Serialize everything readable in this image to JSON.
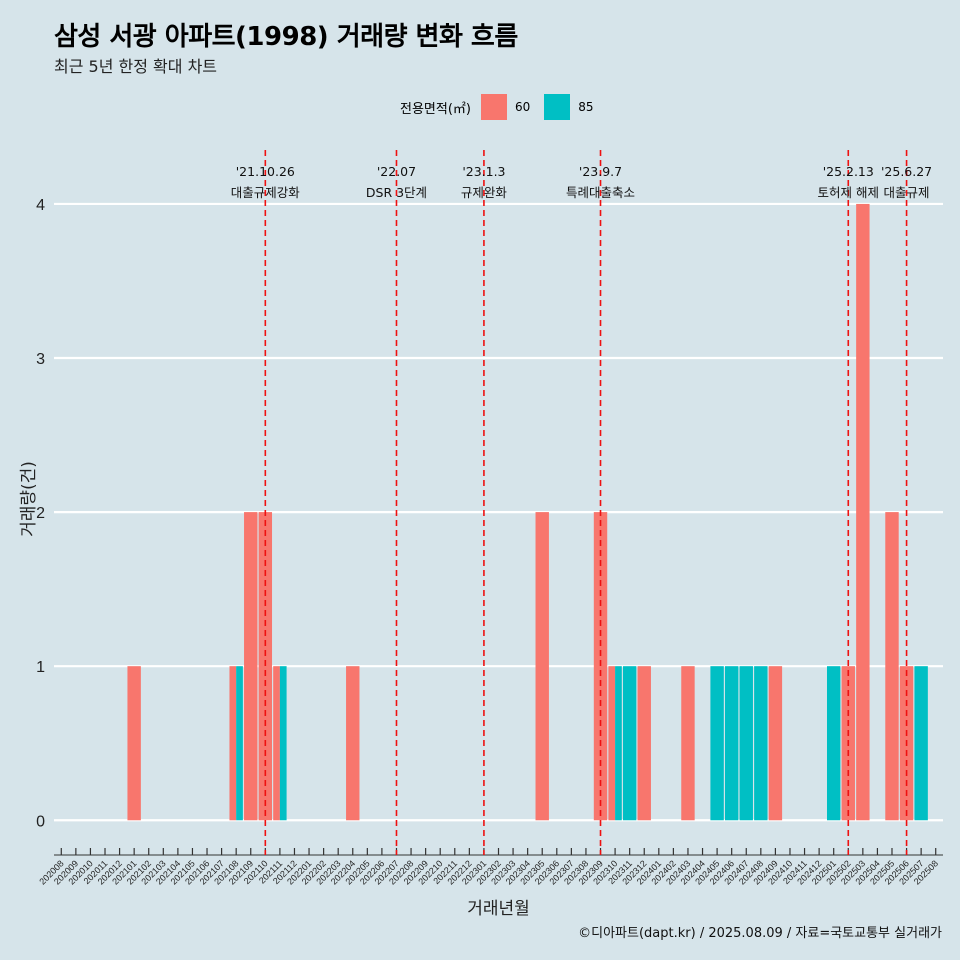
{
  "title": "삼성 서광 아파트(1998) 거래량 변화 흐름",
  "subtitle": "최근 5년 한정 확대 차트",
  "caption": "©디아파트(dapt.kr) / 2025.08.09 / 자료=국토교통부 실거래가",
  "legend": {
    "title": "전용면적(㎡)",
    "items": [
      {
        "label": "60",
        "color": "#f8766d"
      },
      {
        "label": "85",
        "color": "#00bfc4"
      }
    ]
  },
  "chart_data": {
    "type": "bar",
    "xlabel": "거래년월",
    "ylabel": "거래량(건)",
    "ylim": [
      -0.18,
      4.35
    ],
    "yticks": [
      0,
      1,
      2,
      3,
      4
    ],
    "grid": true,
    "legend_position": "top",
    "categories": [
      "202008",
      "202009",
      "202010",
      "202011",
      "202012",
      "202101",
      "202102",
      "202103",
      "202104",
      "202105",
      "202106",
      "202107",
      "202108",
      "202109",
      "202110",
      "202111",
      "202112",
      "202201",
      "202202",
      "202203",
      "202204",
      "202205",
      "202206",
      "202207",
      "202208",
      "202209",
      "202210",
      "202211",
      "202212",
      "202301",
      "202302",
      "202303",
      "202304",
      "202305",
      "202306",
      "202307",
      "202308",
      "202309",
      "202310",
      "202311",
      "202312",
      "202401",
      "202402",
      "202403",
      "202404",
      "202405",
      "202406",
      "202407",
      "202408",
      "202409",
      "202410",
      "202411",
      "202412",
      "202501",
      "202502",
      "202503",
      "202504",
      "202505",
      "202506",
      "202507",
      "202508"
    ],
    "series": [
      {
        "name": "60",
        "color": "#f8766d",
        "values": [
          0,
          0,
          0,
          0,
          0,
          1,
          0,
          0,
          0,
          0,
          0,
          0,
          1,
          2,
          2,
          1,
          0,
          0,
          0,
          0,
          1,
          0,
          0,
          0,
          0,
          0,
          0,
          0,
          0,
          0,
          0,
          0,
          0,
          2,
          0,
          0,
          0,
          2,
          1,
          0,
          1,
          0,
          0,
          1,
          0,
          0,
          0,
          0,
          0,
          1,
          0,
          0,
          0,
          0,
          1,
          4,
          0,
          2,
          1,
          0,
          0
        ]
      },
      {
        "name": "85",
        "color": "#00bfc4",
        "values": [
          0,
          0,
          0,
          0,
          0,
          0,
          0,
          0,
          0,
          0,
          0,
          0,
          1,
          0,
          0,
          1,
          0,
          0,
          0,
          0,
          0,
          0,
          0,
          0,
          0,
          0,
          0,
          0,
          0,
          0,
          0,
          0,
          0,
          0,
          0,
          0,
          0,
          0,
          1,
          1,
          0,
          0,
          0,
          0,
          0,
          1,
          1,
          1,
          1,
          0,
          0,
          0,
          0,
          1,
          0,
          0,
          0,
          0,
          0,
          1,
          0
        ]
      }
    ],
    "annotations": [
      {
        "date": "'21.10.26",
        "label": "대출규제강화",
        "x": "202110"
      },
      {
        "date": "'22.07",
        "label": "DSR 3단계",
        "x": "202207"
      },
      {
        "date": "'23.1.3",
        "label": "규제완화",
        "x": "202301"
      },
      {
        "date": "'23.9.7",
        "label": "특례대출축소",
        "x": "202309"
      },
      {
        "date": "'25.2.13",
        "label": "토허제 해제",
        "x": "202502"
      },
      {
        "date": "'25.6.27",
        "label": "대출규제",
        "x": "202506"
      }
    ]
  }
}
